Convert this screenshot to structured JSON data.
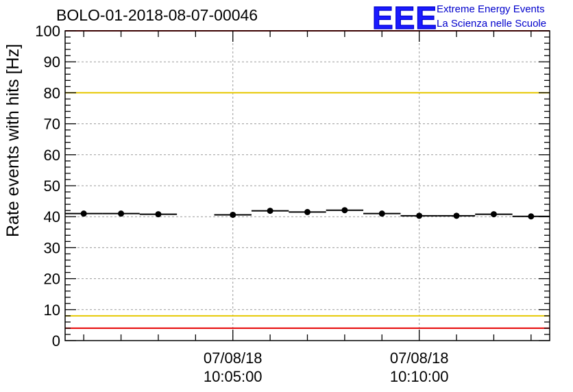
{
  "chart_data": {
    "type": "scatter",
    "title": "BOLO-01-2018-08-07-00046",
    "ylabel": "Rate events with hits [Hz]",
    "xlabel": "",
    "ylim": [
      0,
      100
    ],
    "yticks": [
      0,
      10,
      20,
      30,
      40,
      50,
      60,
      70,
      80,
      90,
      100
    ],
    "xlim": [
      "2018-08-07 10:00:30",
      "2018-08-07 10:13:30"
    ],
    "xticks": [
      {
        "time": "2018-08-07 10:05:00",
        "date_label": "07/08/18",
        "time_label": "10:05:00"
      },
      {
        "time": "2018-08-07 10:10:00",
        "date_label": "07/08/18",
        "time_label": "10:10:00"
      }
    ],
    "grid": true,
    "bin_width_s": 60,
    "series": [
      {
        "points": [
          {
            "x": "2018-08-07 10:01:00",
            "y": 41.0
          },
          {
            "x": "2018-08-07 10:02:00",
            "y": 41.0
          },
          {
            "x": "2018-08-07 10:03:00",
            "y": 40.8
          },
          {
            "x": "2018-08-07 10:05:00",
            "y": 40.6
          },
          {
            "x": "2018-08-07 10:06:00",
            "y": 41.9
          },
          {
            "x": "2018-08-07 10:07:00",
            "y": 41.5
          },
          {
            "x": "2018-08-07 10:08:00",
            "y": 42.1
          },
          {
            "x": "2018-08-07 10:09:00",
            "y": 41.0
          },
          {
            "x": "2018-08-07 10:10:00",
            "y": 40.3
          },
          {
            "x": "2018-08-07 10:11:00",
            "y": 40.3
          },
          {
            "x": "2018-08-07 10:12:00",
            "y": 40.8
          },
          {
            "x": "2018-08-07 10:13:00",
            "y": 40.1
          }
        ]
      }
    ],
    "reference_lines": [
      {
        "y": 80,
        "color": "#e6c800"
      },
      {
        "y": 8,
        "color": "#e6c800"
      },
      {
        "y": 100,
        "color": "#e60000"
      },
      {
        "y": 4,
        "color": "#e60000"
      }
    ]
  },
  "logo": {
    "letters": "EEE",
    "line1": "Extreme Energy Events",
    "line2": "La Scienza nelle Scuole",
    "color": "#0000cc"
  }
}
